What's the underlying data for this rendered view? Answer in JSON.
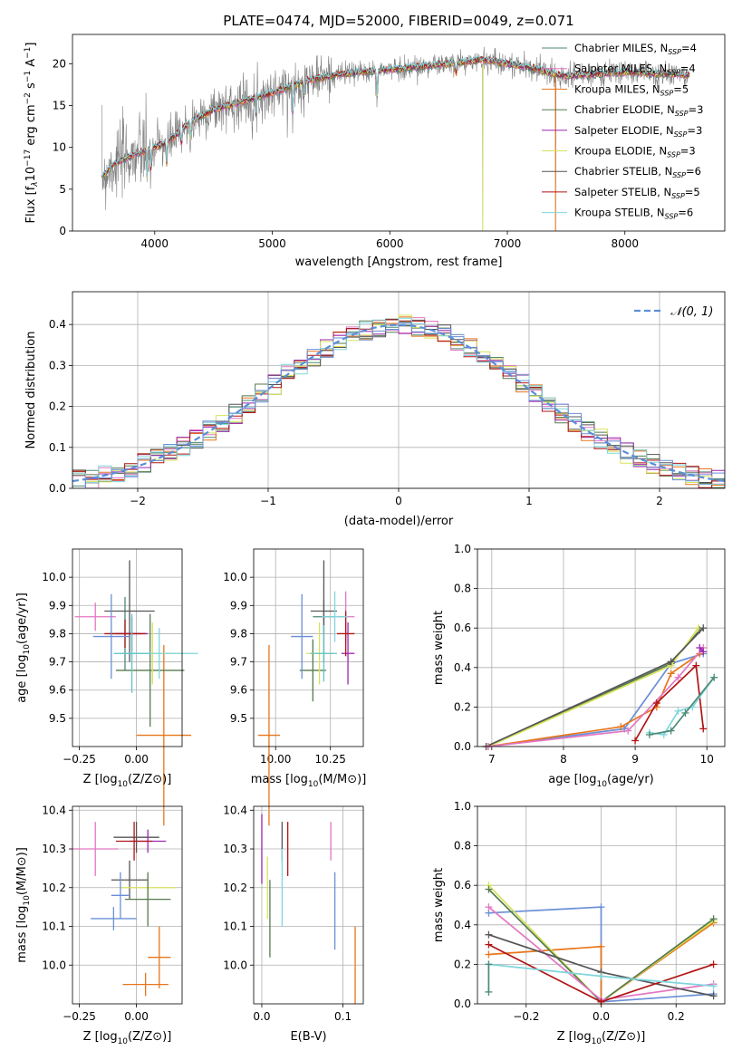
{
  "title": "PLATE=0474, MJD=52000, FIBERID=0049, z=0.071",
  "palette": [
    "#4c8a76",
    "#e377c2",
    "#e8761b",
    "#567a4e",
    "#9c27b0",
    "#d8e25a",
    "#555555",
    "#b01515",
    "#7fd6dc"
  ],
  "legend_entries": [
    {
      "label": "Chabrier MILES, N",
      "sub": "SSP",
      "suffix": "=4",
      "color": "#4c8a76"
    },
    {
      "label": "Salpeter MILES, N",
      "sub": "SSP",
      "suffix": "=4",
      "color": "#e377c2"
    },
    {
      "label": "Kroupa MILES, N",
      "sub": "SSP",
      "suffix": "=5",
      "color": "#e8761b"
    },
    {
      "label": "Chabrier ELODIE, N",
      "sub": "SSP",
      "suffix": "=3",
      "color": "#567a4e"
    },
    {
      "label": "Salpeter ELODIE, N",
      "sub": "SSP",
      "suffix": "=3",
      "color": "#9c27b0"
    },
    {
      "label": "Kroupa ELODIE, N",
      "sub": "SSP",
      "suffix": "=3",
      "color": "#d8e25a"
    },
    {
      "label": "Chabrier STELIB, N",
      "sub": "SSP",
      "suffix": "=6",
      "color": "#555555"
    },
    {
      "label": "Salpeter STELIB, N",
      "sub": "SSP",
      "suffix": "=5",
      "color": "#b01515"
    },
    {
      "label": "Kroupa STELIB, N",
      "sub": "SSP",
      "suffix": "=6",
      "color": "#7fd6dc"
    }
  ],
  "chart_data": [
    {
      "id": "spectrum",
      "type": "line",
      "title": "PLATE=0474, MJD=52000, FIBERID=0049, z=0.071",
      "xlabel": "wavelength [Angstrom, rest frame]",
      "ylabel": "Flux [f",
      "xlim": [
        3300,
        8850
      ],
      "ylim": [
        0,
        23.5
      ],
      "xticks": [
        4000,
        5000,
        6000,
        7000,
        8000
      ],
      "yticks": [
        0,
        5,
        10,
        15,
        20
      ],
      "legend_placement": "right",
      "continuum_knots": [
        [
          3550,
          6.5
        ],
        [
          3650,
          8
        ],
        [
          3800,
          9
        ],
        [
          3950,
          9.8
        ],
        [
          4100,
          10.5
        ],
        [
          4300,
          13
        ],
        [
          4500,
          14.5
        ],
        [
          4750,
          15.5
        ],
        [
          5000,
          16.5
        ],
        [
          5300,
          18
        ],
        [
          5600,
          18.8
        ],
        [
          6000,
          19.3
        ],
        [
          6500,
          20
        ],
        [
          6800,
          20.5
        ],
        [
          7200,
          19.5
        ],
        [
          7500,
          18.5
        ],
        [
          8000,
          19
        ],
        [
          8300,
          18.8
        ],
        [
          8550,
          18.6
        ]
      ],
      "absorption_lines": [
        [
          3934,
          4
        ],
        [
          3969,
          4
        ],
        [
          4102,
          3
        ],
        [
          4227,
          2.5
        ],
        [
          4305,
          3
        ],
        [
          4861,
          2.5
        ],
        [
          5175,
          4
        ],
        [
          5270,
          2
        ],
        [
          5892,
          4
        ],
        [
          6563,
          2
        ]
      ],
      "spikes": [
        [
          6790,
          0
        ],
        [
          7410,
          0
        ]
      ]
    },
    {
      "id": "residuals",
      "type": "bar",
      "xlabel": "(data-model)/error",
      "ylabel": "Normed distribution",
      "xlim": [
        -2.5,
        2.5
      ],
      "ylim": [
        0,
        0.48
      ],
      "xticks": [
        -2,
        -1,
        0,
        1,
        2
      ],
      "yticks": [
        0.0,
        0.1,
        0.2,
        0.3,
        0.4
      ],
      "bin_width": 0.1,
      "reference_curve": {
        "name": "𝒩(0, 1)",
        "mean": 0,
        "sigma": 1,
        "style": "dashed"
      },
      "legend_placement": "upper right"
    },
    {
      "id": "z-age",
      "type": "scatter",
      "xlabel": "Z [log",
      "ylabel": "age  [log",
      "xlim": [
        -0.28,
        0.2
      ],
      "ylim": [
        9.4,
        10.1
      ],
      "xticks": [
        -0.25,
        0.0
      ],
      "yticks": [
        9.5,
        9.6,
        9.7,
        9.8,
        9.9,
        10.0
      ],
      "points": [
        {
          "x": -0.05,
          "y": 9.8,
          "xerr": 0.07,
          "yerr": 0.13,
          "color": "#4c8a76"
        },
        {
          "x": -0.18,
          "y": 9.86,
          "xerr": 0.09,
          "yerr": 0.05,
          "color": "#e377c2"
        },
        {
          "x": 0.12,
          "y": 9.44,
          "xerr": 0.12,
          "yerr": 0.32,
          "color": "#e8761b"
        },
        {
          "x": 0.06,
          "y": 9.67,
          "xerr": 0.15,
          "yerr": 0.2,
          "color": "#567a4e"
        },
        {
          "x": -0.02,
          "y": 9.8,
          "xerr": 0.07,
          "yerr": 0.06,
          "color": "#9c27b0"
        },
        {
          "x": 0.07,
          "y": 9.73,
          "xerr": 0.14,
          "yerr": 0.11,
          "color": "#d8e25a"
        },
        {
          "x": -0.03,
          "y": 9.88,
          "xerr": 0.11,
          "yerr": 0.18,
          "color": "#555555"
        },
        {
          "x": -0.05,
          "y": 9.8,
          "xerr": 0.09,
          "yerr": 0.05,
          "color": "#b01515"
        },
        {
          "x": 0.1,
          "y": 9.73,
          "xerr": 0.17,
          "yerr": 0.09,
          "color": "#7fd6dc"
        },
        {
          "x": -0.11,
          "y": 9.79,
          "xerr": 0.08,
          "yerr": 0.15,
          "color": "#6a8fd6"
        },
        {
          "x": -0.02,
          "y": 9.73,
          "xerr": 0.08,
          "yerr": 0.14,
          "color": "#5fc4cc"
        }
      ]
    },
    {
      "id": "mass-age",
      "type": "scatter",
      "xlabel": "mass [log",
      "ylabel": "",
      "xlim": [
        9.9,
        10.4
      ],
      "ylim": [
        9.4,
        10.1
      ],
      "xticks": [
        10.0,
        10.25
      ],
      "xtick_labels": [
        "10.00",
        "10.25"
      ],
      "yticks": [
        9.5,
        9.6,
        9.7,
        9.8,
        9.9,
        10.0
      ],
      "points": [
        {
          "x": 10.22,
          "y": 9.86,
          "xerr": 0.05,
          "yerr": 0.06,
          "color": "#4c8a76"
        },
        {
          "x": 10.32,
          "y": 9.86,
          "xerr": 0.04,
          "yerr": 0.09,
          "color": "#e377c2"
        },
        {
          "x": 9.97,
          "y": 9.44,
          "xerr": 0.05,
          "yerr": 0.32,
          "color": "#e8761b"
        },
        {
          "x": 10.17,
          "y": 9.67,
          "xerr": 0.06,
          "yerr": 0.11,
          "color": "#567a4e"
        },
        {
          "x": 10.33,
          "y": 9.73,
          "xerr": 0.03,
          "yerr": 0.11,
          "color": "#9c27b0"
        },
        {
          "x": 10.2,
          "y": 9.73,
          "xerr": 0.06,
          "yerr": 0.11,
          "color": "#d8e25a"
        },
        {
          "x": 10.22,
          "y": 9.88,
          "xerr": 0.06,
          "yerr": 0.18,
          "color": "#555555"
        },
        {
          "x": 10.32,
          "y": 9.8,
          "xerr": 0.04,
          "yerr": 0.08,
          "color": "#b01515"
        },
        {
          "x": 10.27,
          "y": 9.86,
          "xerr": 0.06,
          "yerr": 0.09,
          "color": "#7fd6dc"
        },
        {
          "x": 10.12,
          "y": 9.79,
          "xerr": 0.05,
          "yerr": 0.15,
          "color": "#6a8fd6"
        },
        {
          "x": 10.22,
          "y": 9.73,
          "xerr": 0.06,
          "yerr": 0.1,
          "color": "#5fc4cc"
        }
      ]
    },
    {
      "id": "age-weights",
      "type": "line",
      "xlabel": "age  [log",
      "ylabel": "mass weight",
      "xlim": [
        6.8,
        10.25
      ],
      "ylim": [
        0,
        1.0
      ],
      "xticks": [
        7,
        8,
        9,
        10
      ],
      "yticks": [
        0.0,
        0.2,
        0.4,
        0.6,
        0.8,
        1.0
      ],
      "series": [
        {
          "color": "#6a8fd6",
          "points": [
            [
              6.95,
              0.0
            ],
            [
              8.85,
              0.09
            ],
            [
              9.5,
              0.42
            ],
            [
              9.95,
              0.47
            ]
          ]
        },
        {
          "color": "#567a4e",
          "points": [
            [
              6.95,
              0.0
            ],
            [
              9.5,
              0.42
            ],
            [
              9.9,
              0.59
            ]
          ]
        },
        {
          "color": "#d8e25a",
          "points": [
            [
              6.95,
              0.0
            ],
            [
              9.5,
              0.41
            ],
            [
              9.88,
              0.6
            ]
          ]
        },
        {
          "color": "#555555",
          "points": [
            [
              6.92,
              0.0
            ],
            [
              9.5,
              0.43
            ],
            [
              9.95,
              0.6
            ]
          ]
        },
        {
          "color": "#e8761b",
          "points": [
            [
              6.95,
              0.0
            ],
            [
              8.8,
              0.1
            ],
            [
              9.3,
              0.2
            ],
            [
              9.5,
              0.37
            ],
            [
              9.9,
              0.47
            ]
          ]
        },
        {
          "color": "#e377c2",
          "points": [
            [
              6.95,
              0.0
            ],
            [
              8.9,
              0.08
            ],
            [
              9.6,
              0.35
            ],
            [
              9.95,
              0.5
            ]
          ]
        },
        {
          "color": "#9c27b0",
          "points": [
            [
              9.95,
              0.48
            ],
            [
              9.9,
              0.5
            ]
          ]
        },
        {
          "color": "#b01515",
          "points": [
            [
              9.0,
              0.03
            ],
            [
              9.3,
              0.22
            ],
            [
              9.85,
              0.41
            ],
            [
              9.95,
              0.09
            ]
          ]
        },
        {
          "color": "#7fd6dc",
          "points": [
            [
              9.2,
              0.07
            ],
            [
              9.4,
              0.06
            ],
            [
              9.6,
              0.18
            ],
            [
              9.8,
              0.2
            ],
            [
              10.1,
              0.35
            ]
          ]
        },
        {
          "color": "#4c8a76",
          "points": [
            [
              9.2,
              0.06
            ],
            [
              9.5,
              0.08
            ],
            [
              9.7,
              0.17
            ],
            [
              10.1,
              0.35
            ]
          ]
        }
      ]
    },
    {
      "id": "z-mass",
      "type": "scatter",
      "xlabel": "Z [log",
      "ylabel": "mass [log",
      "xlim": [
        -0.28,
        0.2
      ],
      "ylim": [
        9.9,
        10.41
      ],
      "xticks": [
        -0.25,
        0.0
      ],
      "yticks": [
        10.0,
        10.1,
        10.2,
        10.3,
        10.4
      ],
      "points": [
        {
          "x": -0.18,
          "y": 10.3,
          "xerr": 0.1,
          "yerr": 0.07,
          "color": "#e377c2"
        },
        {
          "x": 0.0,
          "y": 10.33,
          "xerr": 0.1,
          "yerr": 0.04,
          "color": "#555555"
        },
        {
          "x": 0.05,
          "y": 10.32,
          "xerr": 0.08,
          "yerr": 0.03,
          "color": "#9c27b0"
        },
        {
          "x": -0.01,
          "y": 10.32,
          "xerr": 0.08,
          "yerr": 0.05,
          "color": "#b01515"
        },
        {
          "x": -0.03,
          "y": 10.22,
          "xerr": 0.08,
          "yerr": 0.05,
          "color": "#555555"
        },
        {
          "x": 0.05,
          "y": 10.2,
          "xerr": 0.12,
          "yerr": 0.03,
          "color": "#d8e25a"
        },
        {
          "x": -0.07,
          "y": 10.18,
          "xerr": 0.04,
          "yerr": 0.06,
          "color": "#6a8fd6"
        },
        {
          "x": 0.05,
          "y": 10.17,
          "xerr": 0.1,
          "yerr": 0.07,
          "color": "#567a4e"
        },
        {
          "x": -0.1,
          "y": 10.12,
          "xerr": 0.1,
          "yerr": 0.03,
          "color": "#6a8fd6"
        },
        {
          "x": 0.1,
          "y": 10.02,
          "xerr": 0.05,
          "yerr": 0.08,
          "color": "#e8761b"
        },
        {
          "x": 0.04,
          "y": 9.95,
          "xerr": 0.1,
          "yerr": 0.03,
          "color": "#e8761b"
        }
      ]
    },
    {
      "id": "ebv-mass",
      "type": "scatter",
      "xlabel": "E(B-V)",
      "ylabel": "",
      "xlim": [
        -0.01,
        0.125
      ],
      "ylim": [
        9.9,
        10.41
      ],
      "xticks": [
        0.0,
        0.1
      ],
      "yticks": [
        10.0,
        10.1,
        10.2,
        10.3,
        10.4
      ],
      "points": [
        {
          "x": 0.0,
          "y": 10.3,
          "xerr": 0,
          "yerr": 0.09,
          "color": "#9c27b0"
        },
        {
          "x": 0.007,
          "y": 10.2,
          "xerr": 0,
          "yerr": 0.08,
          "color": "#d8e25a"
        },
        {
          "x": 0.01,
          "y": 10.12,
          "xerr": 0,
          "yerr": 0.1,
          "color": "#567a4e"
        },
        {
          "x": 0.025,
          "y": 10.32,
          "xerr": 0,
          "yerr": 0.05,
          "color": "#555555"
        },
        {
          "x": 0.025,
          "y": 10.2,
          "xerr": 0,
          "yerr": 0.1,
          "color": "#7fd6dc"
        },
        {
          "x": 0.032,
          "y": 10.3,
          "xerr": 0,
          "yerr": 0.07,
          "color": "#b01515"
        },
        {
          "x": 0.085,
          "y": 10.32,
          "xerr": 0,
          "yerr": 0.05,
          "color": "#e377c2"
        },
        {
          "x": 0.09,
          "y": 10.14,
          "xerr": 0,
          "yerr": 0.1,
          "color": "#6a8fd6"
        },
        {
          "x": 0.115,
          "y": 10.0,
          "xerr": 0,
          "yerr": 0.1,
          "color": "#e8761b"
        }
      ]
    },
    {
      "id": "z-weights",
      "type": "line",
      "xlabel": "Z [log",
      "ylabel": "mass weight",
      "xlim": [
        -0.33,
        0.33
      ],
      "ylim": [
        0,
        1.0
      ],
      "xticks": [
        -0.2,
        0.0,
        0.2
      ],
      "yticks": [
        0.0,
        0.2,
        0.4,
        0.6,
        0.8,
        1.0
      ],
      "series": [
        {
          "color": "#6a8fd6",
          "points": [
            [
              -0.3,
              0.46
            ],
            [
              0.0,
              0.49
            ],
            [
              0.0,
              0.01
            ],
            [
              0.3,
              0.05
            ]
          ]
        },
        {
          "color": "#e8761b",
          "points": [
            [
              -0.3,
              0.25
            ],
            [
              0.0,
              0.29
            ],
            [
              0.0,
              0.01
            ],
            [
              0.3,
              0.41
            ]
          ]
        },
        {
          "color": "#d8e25a",
          "points": [
            [
              -0.3,
              0.6
            ],
            [
              0.0,
              0.01
            ],
            [
              0.3,
              0.42
            ]
          ]
        },
        {
          "color": "#567a4e",
          "points": [
            [
              -0.3,
              0.58
            ],
            [
              0.0,
              0.01
            ],
            [
              0.3,
              0.43
            ]
          ]
        },
        {
          "color": "#e377c2",
          "points": [
            [
              -0.3,
              0.49
            ],
            [
              0.0,
              0.02
            ],
            [
              0.3,
              0.1
            ]
          ]
        },
        {
          "color": "#555555",
          "points": [
            [
              -0.3,
              0.35
            ],
            [
              0.0,
              0.16
            ],
            [
              0.3,
              0.04
            ]
          ]
        },
        {
          "color": "#b01515",
          "points": [
            [
              -0.3,
              0.3
            ],
            [
              0.0,
              0.01
            ],
            [
              0.3,
              0.2
            ]
          ]
        },
        {
          "color": "#7fd6dc",
          "points": [
            [
              -0.3,
              0.2
            ],
            [
              0.0,
              0.14
            ],
            [
              0.3,
              0.09
            ]
          ]
        },
        {
          "color": "#4c8a76",
          "points": [
            [
              -0.3,
              0.06
            ],
            [
              -0.3,
              0.2
            ]
          ]
        }
      ]
    }
  ]
}
